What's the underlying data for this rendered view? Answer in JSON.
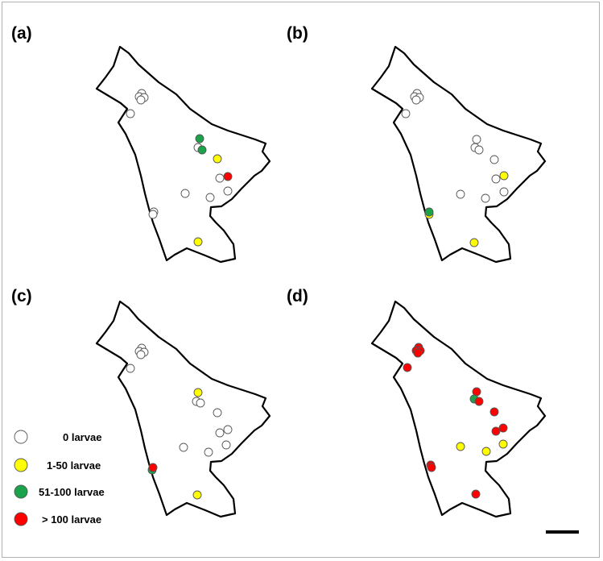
{
  "figure": {
    "panels": [
      {
        "id": "a",
        "label": "(a)",
        "origin": [
          0,
          0
        ]
      },
      {
        "id": "b",
        "label": "(b)",
        "origin": [
          342,
          0
        ]
      },
      {
        "id": "c",
        "label": "(c)",
        "origin": [
          0,
          324
        ]
      },
      {
        "id": "d",
        "label": "(d)",
        "origin": [
          342,
          324
        ]
      }
    ],
    "legend": {
      "items": [
        {
          "category": "zero",
          "label": "0 larvae",
          "color": "#ffffff"
        },
        {
          "category": "low",
          "label": "1-50 larvae",
          "color": "#ffff00"
        },
        {
          "category": "medium",
          "label": "51-100 larvae",
          "color": "#1aa34a"
        },
        {
          "category": "high",
          "label": "> 100 larvae",
          "color": "#ff0000"
        }
      ]
    },
    "colors": {
      "outline": "#000000",
      "site_stroke": "#555555",
      "frame": "#b0b0b0"
    },
    "sites": {
      "a": [
        [
          "zero",
          176,
          116
        ],
        [
          "zero",
          173,
          120
        ],
        [
          "zero",
          179,
          121
        ],
        [
          "zero",
          175,
          124
        ],
        [
          "zero",
          162,
          141
        ],
        [
          "medium",
          248,
          172
        ],
        [
          "zero",
          246,
          183
        ],
        [
          "medium",
          251,
          186
        ],
        [
          "low",
          270,
          197
        ],
        [
          "high",
          283,
          219
        ],
        [
          "zero",
          273,
          221
        ],
        [
          "zero",
          283,
          237
        ],
        [
          "zero",
          230,
          240
        ],
        [
          "zero",
          261,
          245
        ],
        [
          "zero",
          191,
          263
        ],
        [
          "zero",
          190,
          266
        ],
        [
          "low",
          246,
          300
        ]
      ],
      "b": [
        [
          "zero",
          176,
          116
        ],
        [
          "zero",
          173,
          120
        ],
        [
          "zero",
          179,
          121
        ],
        [
          "zero",
          175,
          124
        ],
        [
          "zero",
          162,
          141
        ],
        [
          "zero",
          250,
          173
        ],
        [
          "zero",
          248,
          183
        ],
        [
          "zero",
          253,
          186
        ],
        [
          "zero",
          272,
          198
        ],
        [
          "low",
          284,
          218
        ],
        [
          "zero",
          274,
          222
        ],
        [
          "zero",
          284,
          238
        ],
        [
          "zero",
          230,
          241
        ],
        [
          "zero",
          261,
          246
        ],
        [
          "low",
          191,
          266
        ],
        [
          "medium",
          191,
          263
        ],
        [
          "low",
          247,
          301
        ]
      ],
      "c": [
        [
          "zero",
          176,
          108
        ],
        [
          "zero",
          173,
          112
        ],
        [
          "zero",
          179,
          113
        ],
        [
          "zero",
          175,
          116
        ],
        [
          "zero",
          162,
          133
        ],
        [
          "low",
          246,
          163
        ],
        [
          "zero",
          244,
          174
        ],
        [
          "zero",
          249,
          176
        ],
        [
          "zero",
          270,
          188
        ],
        [
          "zero",
          283,
          209
        ],
        [
          "zero",
          273,
          213
        ],
        [
          "zero",
          281,
          228
        ],
        [
          "zero",
          228,
          231
        ],
        [
          "zero",
          259,
          237
        ],
        [
          "medium",
          189,
          259
        ],
        [
          "high",
          190,
          256
        ],
        [
          "low",
          245,
          290
        ]
      ],
      "d": [
        [
          "high",
          178,
          107
        ],
        [
          "high",
          175,
          111
        ],
        [
          "high",
          180,
          111
        ],
        [
          "high",
          177,
          114
        ],
        [
          "high",
          164,
          132
        ],
        [
          "high",
          250,
          162
        ],
        [
          "medium",
          247,
          171
        ],
        [
          "high",
          253,
          174
        ],
        [
          "high",
          272,
          187
        ],
        [
          "high",
          283,
          207
        ],
        [
          "high",
          274,
          211
        ],
        [
          "low",
          283,
          227
        ],
        [
          "low",
          230,
          230
        ],
        [
          "low",
          262,
          236
        ],
        [
          "high",
          193,
          253
        ],
        [
          "high",
          194,
          256
        ],
        [
          "high",
          249,
          289
        ]
      ]
    },
    "scale_bar": {
      "present": true
    }
  }
}
